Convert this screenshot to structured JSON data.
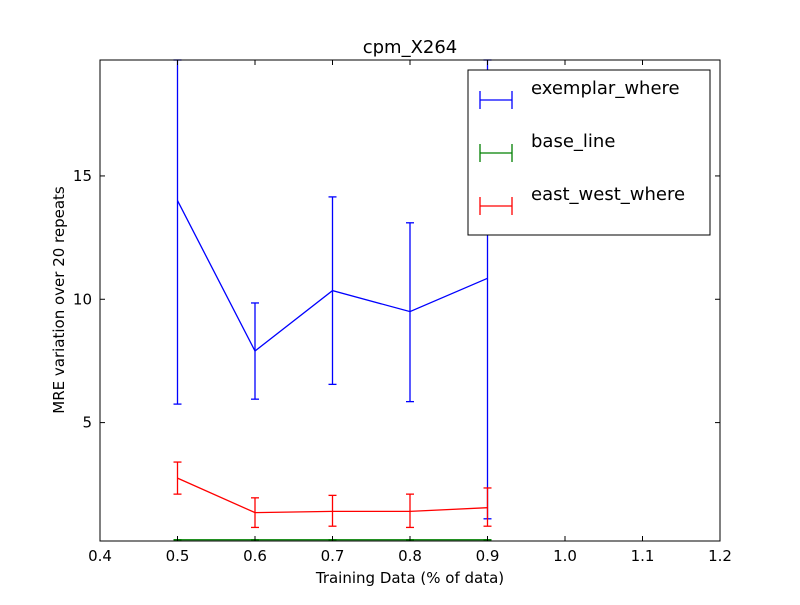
{
  "chart_data": {
    "type": "line",
    "title": "cpm_X264",
    "xlabel": "Training Data (% of data)",
    "ylabel": "MRE variation over 20 repeats",
    "xlim": [
      0.4,
      1.2
    ],
    "ylim": [
      0.2,
      19.7
    ],
    "xticks": [
      0.4,
      0.5,
      0.6,
      0.7,
      0.8,
      0.9,
      1.0,
      1.1,
      1.2
    ],
    "xtick_labels": [
      "0.4",
      "0.5",
      "0.6",
      "0.7",
      "0.8",
      "0.9",
      "1.0",
      "1.1",
      "1.2"
    ],
    "yticks": [
      5,
      10,
      15
    ],
    "ytick_labels": [
      "5",
      "10",
      "15"
    ],
    "grid": false,
    "legend_position": "top-right",
    "x": [
      0.5,
      0.6,
      0.7,
      0.8,
      0.9
    ],
    "series": [
      {
        "name": "exemplar_where",
        "color": "#0000ff",
        "values": [
          14.0,
          7.9,
          10.35,
          9.5,
          10.85
        ],
        "err_low": [
          5.75,
          5.95,
          6.55,
          5.85,
          1.1
        ],
        "err_high": [
          19.7,
          9.85,
          14.15,
          13.1,
          19.7
        ]
      },
      {
        "name": "base_line",
        "color": "#008000",
        "values": [
          0.25,
          0.25,
          0.25,
          0.25,
          0.25
        ],
        "err_low": [
          0.25,
          0.25,
          0.25,
          0.25,
          0.25
        ],
        "err_high": [
          0.25,
          0.25,
          0.25,
          0.25,
          0.25
        ]
      },
      {
        "name": "east_west_where",
        "color": "#ff0000",
        "values": [
          2.75,
          1.35,
          1.4,
          1.4,
          1.55
        ],
        "err_low": [
          2.1,
          0.75,
          0.8,
          0.75,
          0.8
        ],
        "err_high": [
          3.4,
          1.95,
          2.05,
          2.1,
          2.35
        ]
      }
    ]
  }
}
